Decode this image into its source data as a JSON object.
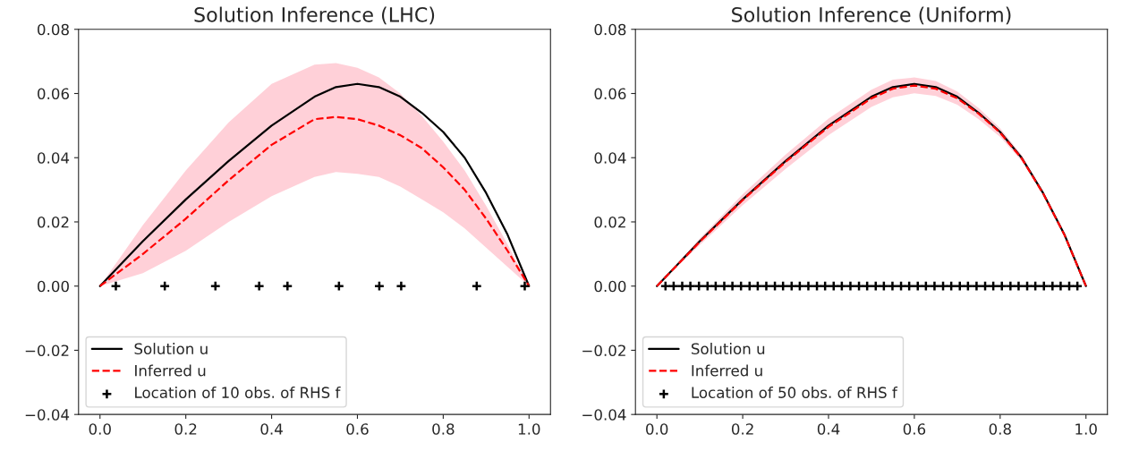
{
  "chart_data": [
    {
      "type": "line",
      "title": "Solution Inference (LHC)",
      "legend": "bottom left",
      "grid": false,
      "xlim": [
        -0.05,
        1.05
      ],
      "ylim": [
        -0.04,
        0.08
      ],
      "xticks": [
        {
          "value": 0,
          "label": "0.0"
        },
        {
          "value": 0.2,
          "label": "0.2"
        },
        {
          "value": 0.4,
          "label": "0.4"
        },
        {
          "value": 0.6,
          "label": "0.6"
        },
        {
          "value": 0.8,
          "label": "0.8"
        },
        {
          "value": 1,
          "label": "1.0"
        }
      ],
      "yticks": [
        {
          "value": -0.04,
          "label": "−0.04"
        },
        {
          "value": -0.02,
          "label": "−0.02"
        },
        {
          "value": 0,
          "label": "0.00"
        },
        {
          "value": 0.02,
          "label": "0.02"
        },
        {
          "value": 0.04,
          "label": "0.04"
        },
        {
          "value": 0.06,
          "label": "0.06"
        },
        {
          "value": 0.08,
          "label": "0.08"
        }
      ],
      "x": [
        0,
        0.1,
        0.2,
        0.3,
        0.4,
        0.5,
        0.55,
        0.6,
        0.65,
        0.7,
        0.75,
        0.8,
        0.85,
        0.9,
        0.95,
        1
      ],
      "series": [
        {
          "name": "Solution u",
          "color": "#000000",
          "line_style": "solid",
          "values": [
            0,
            0.014,
            0.027,
            0.039,
            0.05,
            0.059,
            0.062,
            0.063,
            0.062,
            0.059,
            0.054,
            0.048,
            0.04,
            0.029,
            0.016,
            0
          ]
        },
        {
          "name": "Inferred u",
          "color": "#ff0000",
          "line_style": "dashed",
          "values": [
            0,
            0.01,
            0.021,
            0.033,
            0.044,
            0.052,
            0.0527,
            0.052,
            0.05,
            0.047,
            0.043,
            0.037,
            0.03,
            0.021,
            0.011,
            0
          ],
          "lower": [
            0,
            0.004,
            0.011,
            0.02,
            0.028,
            0.034,
            0.0355,
            0.035,
            0.034,
            0.031,
            0.027,
            0.023,
            0.018,
            0.012,
            0.006,
            0
          ],
          "upper": [
            0,
            0.019,
            0.036,
            0.051,
            0.063,
            0.069,
            0.0695,
            0.068,
            0.065,
            0.06,
            0.053,
            0.045,
            0.036,
            0.025,
            0.013,
            0
          ]
        },
        {
          "name": "Location of 10 obs. of RHS f",
          "type": "scatter",
          "marker": "cross",
          "color": "#000000",
          "x": [
            0.037,
            0.151,
            0.269,
            0.371,
            0.437,
            0.557,
            0.651,
            0.702,
            0.878,
            0.99
          ],
          "values": [
            0,
            0,
            0,
            0,
            0,
            0,
            0,
            0,
            0,
            0
          ]
        }
      ]
    },
    {
      "type": "line",
      "title": "Solution Inference (Uniform)",
      "legend": "bottom left",
      "grid": false,
      "xlim": [
        -0.05,
        1.05
      ],
      "ylim": [
        -0.04,
        0.08
      ],
      "xticks": [
        {
          "value": 0,
          "label": "0.0"
        },
        {
          "value": 0.2,
          "label": "0.2"
        },
        {
          "value": 0.4,
          "label": "0.4"
        },
        {
          "value": 0.6,
          "label": "0.6"
        },
        {
          "value": 0.8,
          "label": "0.8"
        },
        {
          "value": 1,
          "label": "1.0"
        }
      ],
      "yticks": [
        {
          "value": -0.04,
          "label": "−0.04"
        },
        {
          "value": -0.02,
          "label": "−0.02"
        },
        {
          "value": 0,
          "label": "0.00"
        },
        {
          "value": 0.02,
          "label": "0.02"
        },
        {
          "value": 0.04,
          "label": "0.04"
        },
        {
          "value": 0.06,
          "label": "0.06"
        },
        {
          "value": 0.08,
          "label": "0.08"
        }
      ],
      "x": [
        0,
        0.1,
        0.2,
        0.3,
        0.4,
        0.5,
        0.55,
        0.6,
        0.65,
        0.7,
        0.75,
        0.8,
        0.85,
        0.9,
        0.95,
        1
      ],
      "series": [
        {
          "name": "Solution u",
          "color": "#000000",
          "line_style": "solid",
          "values": [
            0,
            0.014,
            0.027,
            0.039,
            0.05,
            0.059,
            0.062,
            0.063,
            0.062,
            0.059,
            0.054,
            0.048,
            0.04,
            0.029,
            0.016,
            0
          ]
        },
        {
          "name": "Inferred u",
          "color": "#ff0000",
          "line_style": "dashed",
          "values": [
            0,
            0.0138,
            0.0268,
            0.0387,
            0.0496,
            0.0585,
            0.0615,
            0.0625,
            0.0615,
            0.0585,
            0.0537,
            0.0478,
            0.0398,
            0.0289,
            0.0159,
            0
          ],
          "lower": [
            0,
            0.0128,
            0.0252,
            0.0365,
            0.047,
            0.0558,
            0.0588,
            0.0601,
            0.0592,
            0.0565,
            0.052,
            0.0465,
            0.039,
            0.0284,
            0.0157,
            0
          ],
          "upper": [
            0,
            0.0148,
            0.0286,
            0.041,
            0.0522,
            0.0612,
            0.0643,
            0.065,
            0.0639,
            0.0606,
            0.0555,
            0.0492,
            0.0408,
            0.0295,
            0.0162,
            0
          ]
        },
        {
          "name": "Location of 50 obs. of RHS f",
          "type": "scatter",
          "marker": "cross",
          "color": "#000000",
          "x": [
            0.02,
            0.039,
            0.059,
            0.078,
            0.098,
            0.118,
            0.137,
            0.157,
            0.176,
            0.196,
            0.216,
            0.235,
            0.255,
            0.275,
            0.294,
            0.314,
            0.333,
            0.353,
            0.373,
            0.392,
            0.412,
            0.431,
            0.451,
            0.471,
            0.49,
            0.51,
            0.529,
            0.549,
            0.569,
            0.588,
            0.608,
            0.627,
            0.647,
            0.667,
            0.686,
            0.706,
            0.725,
            0.745,
            0.765,
            0.784,
            0.804,
            0.824,
            0.843,
            0.863,
            0.882,
            0.902,
            0.922,
            0.941,
            0.961,
            0.98
          ],
          "values": [
            0,
            0,
            0,
            0,
            0,
            0,
            0,
            0,
            0,
            0,
            0,
            0,
            0,
            0,
            0,
            0,
            0,
            0,
            0,
            0,
            0,
            0,
            0,
            0,
            0,
            0,
            0,
            0,
            0,
            0,
            0,
            0,
            0,
            0,
            0,
            0,
            0,
            0,
            0,
            0,
            0,
            0,
            0,
            0,
            0,
            0,
            0,
            0,
            0,
            0
          ]
        }
      ]
    }
  ]
}
